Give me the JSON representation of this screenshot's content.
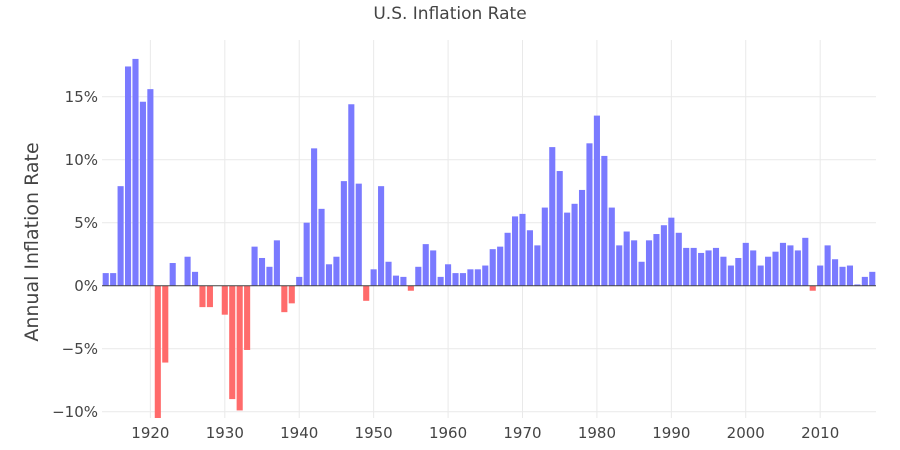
{
  "chart_data": {
    "type": "bar",
    "title": "U.S. Inflation Rate",
    "xlabel": "",
    "ylabel": "Annual Inflation Rate",
    "xlim": [
      1913.5,
      2017.5
    ],
    "ylim": [
      -10.5,
      19.5
    ],
    "y_ticks": [
      15,
      10,
      5,
      0,
      -5,
      -10
    ],
    "y_tick_labels": [
      "15%",
      "10%",
      "5%",
      "0%",
      "−5%",
      "−10%"
    ],
    "x_ticks": [
      1920,
      1930,
      1940,
      1950,
      1960,
      1970,
      1980,
      1990,
      2000,
      2010
    ],
    "x_tick_labels": [
      "1920",
      "1930",
      "1940",
      "1950",
      "1960",
      "1970",
      "1980",
      "1990",
      "2000",
      "2010"
    ],
    "grid": true,
    "colors": {
      "positive": "#7a7aff",
      "negative": "#ff6b6b",
      "grid": "#e9e9e9",
      "zero_line": "#444444"
    },
    "x": [
      1914,
      1915,
      1916,
      1917,
      1918,
      1919,
      1920,
      1921,
      1922,
      1923,
      1924,
      1925,
      1926,
      1927,
      1928,
      1929,
      1930,
      1931,
      1932,
      1933,
      1934,
      1935,
      1936,
      1937,
      1938,
      1939,
      1940,
      1941,
      1942,
      1943,
      1944,
      1945,
      1946,
      1947,
      1948,
      1949,
      1950,
      1951,
      1952,
      1953,
      1954,
      1955,
      1956,
      1957,
      1958,
      1959,
      1960,
      1961,
      1962,
      1963,
      1964,
      1965,
      1966,
      1967,
      1968,
      1969,
      1970,
      1971,
      1972,
      1973,
      1974,
      1975,
      1976,
      1977,
      1978,
      1979,
      1980,
      1981,
      1982,
      1983,
      1984,
      1985,
      1986,
      1987,
      1988,
      1989,
      1990,
      1991,
      1992,
      1993,
      1994,
      1995,
      1996,
      1997,
      1998,
      1999,
      2000,
      2001,
      2002,
      2003,
      2004,
      2005,
      2006,
      2007,
      2008,
      2009,
      2010,
      2011,
      2012,
      2013,
      2014,
      2015,
      2016,
      2017
    ],
    "values": [
      1.0,
      1.0,
      7.9,
      17.4,
      18.0,
      14.6,
      15.6,
      -10.5,
      -6.1,
      1.8,
      0.0,
      2.3,
      1.1,
      -1.7,
      -1.7,
      0.0,
      -2.3,
      -9.0,
      -9.9,
      -5.1,
      3.1,
      2.2,
      1.5,
      3.6,
      -2.1,
      -1.4,
      0.7,
      5.0,
      10.9,
      6.1,
      1.7,
      2.3,
      8.3,
      14.4,
      8.1,
      -1.2,
      1.3,
      7.9,
      1.9,
      0.8,
      0.7,
      -0.4,
      1.5,
      3.3,
      2.8,
      0.7,
      1.7,
      1.0,
      1.0,
      1.3,
      1.3,
      1.6,
      2.9,
      3.1,
      4.2,
      5.5,
      5.7,
      4.4,
      3.2,
      6.2,
      11.0,
      9.1,
      5.8,
      6.5,
      7.6,
      11.3,
      13.5,
      10.3,
      6.2,
      3.2,
      4.3,
      3.6,
      1.9,
      3.6,
      4.1,
      4.8,
      5.4,
      4.2,
      3.0,
      3.0,
      2.6,
      2.8,
      3.0,
      2.3,
      1.6,
      2.2,
      3.4,
      2.8,
      1.6,
      2.3,
      2.7,
      3.4,
      3.2,
      2.8,
      3.8,
      -0.4,
      1.6,
      3.2,
      2.1,
      1.5,
      1.6,
      0.1,
      0.7,
      1.1
    ]
  }
}
